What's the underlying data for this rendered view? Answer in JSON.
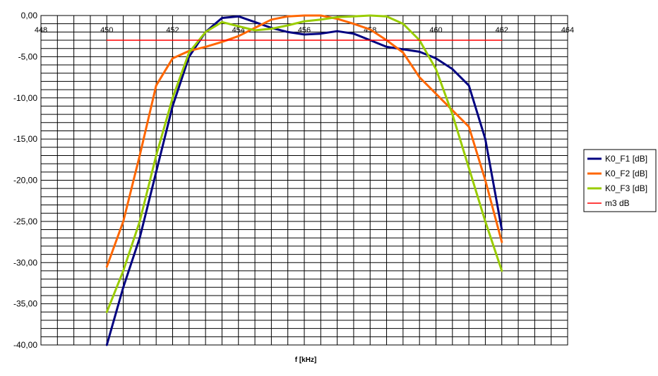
{
  "chart_data": {
    "type": "line",
    "xlabel": "f [kHz]",
    "ylabel": "",
    "xlim": [
      448,
      464
    ],
    "ylim": [
      -40,
      0
    ],
    "x_ticks": [
      "448",
      "450",
      "452",
      "454",
      "456",
      "458",
      "460",
      "462",
      "464"
    ],
    "y_ticks": [
      "0,00",
      "-5,00",
      "-10,00",
      "-15,00",
      "-20,00",
      "-25,00",
      "-30,00",
      "-35,00",
      "-40,00"
    ],
    "grid": true,
    "legend_position": "right",
    "series": [
      {
        "name": "K0_F1 [dB]",
        "color": "#000080",
        "points": [
          [
            450,
            -40
          ],
          [
            450.5,
            -33
          ],
          [
            451,
            -27
          ],
          [
            451.5,
            -19
          ],
          [
            452,
            -11
          ],
          [
            452.5,
            -5
          ],
          [
            453,
            -2
          ],
          [
            453.5,
            -0.3
          ],
          [
            454,
            -0.1
          ],
          [
            454.5,
            -0.8
          ],
          [
            455,
            -1.5
          ],
          [
            455.5,
            -2
          ],
          [
            456,
            -2.3
          ],
          [
            456.5,
            -2.2
          ],
          [
            457,
            -1.9
          ],
          [
            457.5,
            -2.2
          ],
          [
            458,
            -3
          ],
          [
            458.5,
            -3.8
          ],
          [
            459,
            -4.1
          ],
          [
            459.5,
            -4.4
          ],
          [
            460,
            -5.2
          ],
          [
            460.5,
            -6.5
          ],
          [
            461,
            -8.5
          ],
          [
            461.5,
            -15
          ],
          [
            462,
            -26
          ]
        ]
      },
      {
        "name": "K0_F2 [dB]",
        "color": "#FF6600",
        "points": [
          [
            450,
            -30.5
          ],
          [
            450.5,
            -25
          ],
          [
            451,
            -17
          ],
          [
            451.5,
            -8.5
          ],
          [
            452,
            -5.2
          ],
          [
            452.5,
            -4.3
          ],
          [
            453,
            -3.8
          ],
          [
            453.5,
            -3.2
          ],
          [
            454,
            -2.5
          ],
          [
            454.5,
            -1.5
          ],
          [
            455,
            -0.5
          ],
          [
            455.5,
            -0.1
          ],
          [
            456,
            0
          ],
          [
            456.5,
            0
          ],
          [
            457,
            -0.4
          ],
          [
            457.5,
            -1
          ],
          [
            458,
            -1.7
          ],
          [
            458.5,
            -3
          ],
          [
            459,
            -4.5
          ],
          [
            459.5,
            -7.5
          ],
          [
            460,
            -9.5
          ],
          [
            460.5,
            -11.5
          ],
          [
            461,
            -13.5
          ],
          [
            461.5,
            -20
          ],
          [
            462,
            -27.5
          ]
        ]
      },
      {
        "name": "K0_F3 [dB]",
        "color": "#99CC00",
        "points": [
          [
            450,
            -36
          ],
          [
            450.5,
            -31
          ],
          [
            451,
            -25
          ],
          [
            451.5,
            -17
          ],
          [
            452,
            -10
          ],
          [
            452.5,
            -4.5
          ],
          [
            453,
            -2
          ],
          [
            453.5,
            -0.8
          ],
          [
            454,
            -1.3
          ],
          [
            454.5,
            -1.8
          ],
          [
            455,
            -1.6
          ],
          [
            455.5,
            -1.2
          ],
          [
            456,
            -0.7
          ],
          [
            456.5,
            -0.5
          ],
          [
            457,
            -0.2
          ],
          [
            457.5,
            -0.1
          ],
          [
            458,
            0
          ],
          [
            458.5,
            -0.1
          ],
          [
            459,
            -1
          ],
          [
            459.5,
            -3
          ],
          [
            460,
            -6.5
          ],
          [
            460.5,
            -12
          ],
          [
            461,
            -18.5
          ],
          [
            461.5,
            -25
          ],
          [
            462,
            -31
          ]
        ]
      },
      {
        "name": "m3 dB",
        "color": "#FF0000",
        "points": [
          [
            450,
            -3
          ],
          [
            462,
            -3
          ]
        ]
      }
    ]
  }
}
